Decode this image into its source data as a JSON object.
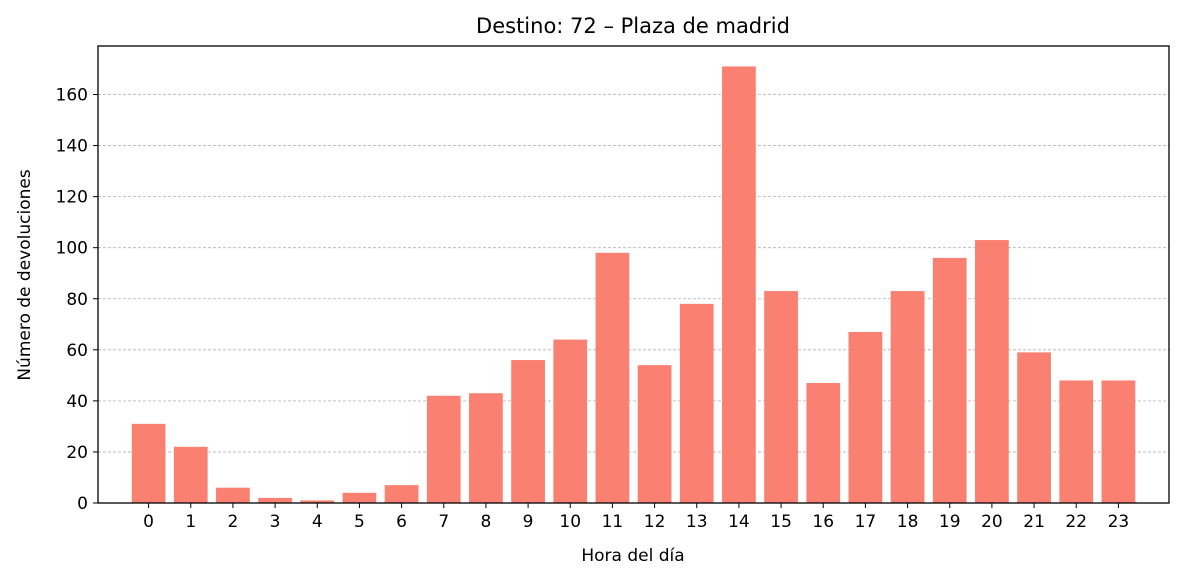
{
  "chart_data": {
    "type": "bar",
    "title": "Destino: 72 – Plaza de madrid",
    "xlabel": "Hora del día",
    "ylabel": "Número de devoluciones",
    "categories": [
      "0",
      "1",
      "2",
      "3",
      "4",
      "5",
      "6",
      "7",
      "8",
      "9",
      "10",
      "11",
      "12",
      "13",
      "14",
      "15",
      "16",
      "17",
      "18",
      "19",
      "20",
      "21",
      "22",
      "23"
    ],
    "values": [
      31,
      22,
      6,
      2,
      1,
      4,
      7,
      42,
      43,
      56,
      64,
      98,
      54,
      78,
      171,
      83,
      47,
      67,
      83,
      96,
      103,
      59,
      48,
      48
    ],
    "ylim": [
      0,
      179
    ],
    "yticks": [
      0,
      20,
      40,
      60,
      80,
      100,
      120,
      140,
      160
    ],
    "ytick_labels": [
      "0",
      "20",
      "40",
      "60",
      "80",
      "100",
      "120",
      "140",
      "160"
    ],
    "grid": "y-dashed",
    "bar_color": "#fa8072",
    "grid_color": "#b0b0b0",
    "axis_color": "#000000"
  }
}
